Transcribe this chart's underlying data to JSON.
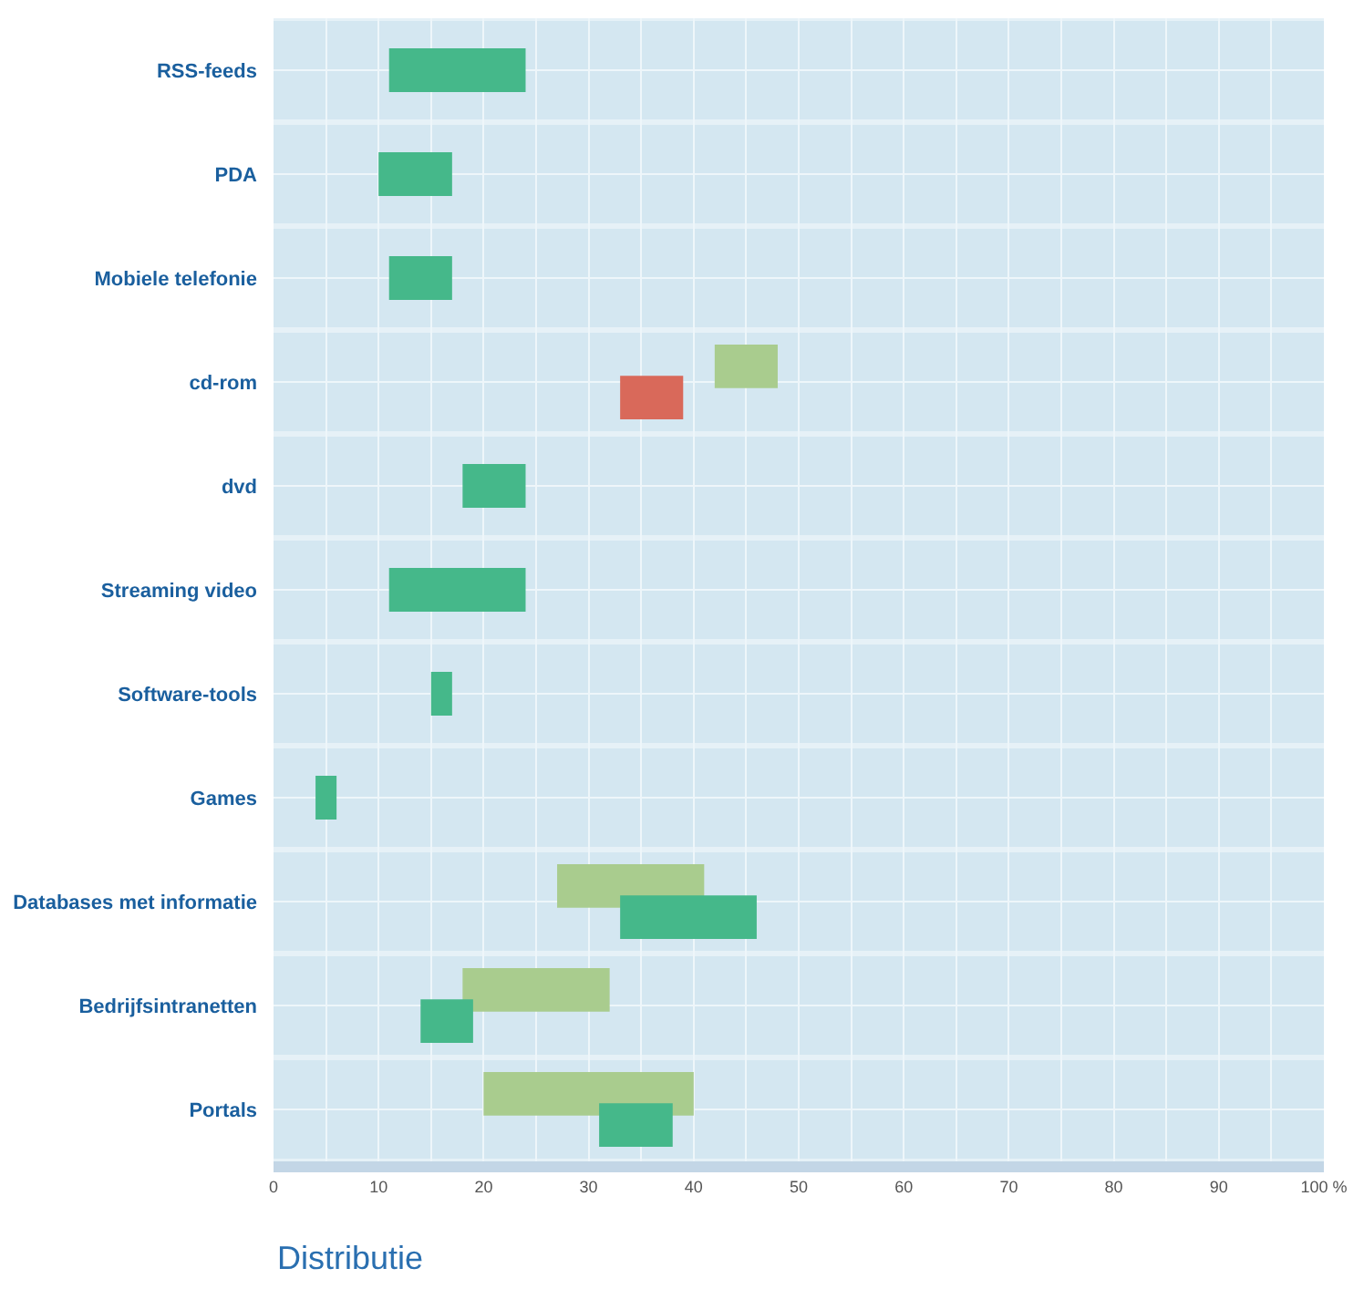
{
  "chart_data": {
    "type": "bar",
    "orientation": "horizontal",
    "xlabel": "Distributie",
    "categories": [
      "RSS-feeds",
      "PDA",
      "Mobiele telefonie",
      "cd-rom",
      "dvd",
      "Streaming video",
      "Software-tools",
      "Games",
      "Databases met informatie",
      "Bedrijfsintranetten",
      "Portals"
    ],
    "series": [
      {
        "color": "#a9cc8e",
        "base": [
          null,
          null,
          null,
          42,
          null,
          null,
          null,
          null,
          27,
          18,
          20
        ],
        "values": [
          null,
          null,
          null,
          6,
          null,
          null,
          null,
          null,
          14,
          14,
          20
        ]
      },
      {
        "colors": [
          "#45b88a",
          "#45b88a",
          "#45b88a",
          "#d9695a",
          "#45b88a",
          "#45b88a",
          "#45b88a",
          "#45b88a",
          "#45b88a",
          "#45b88a",
          "#45b88a"
        ],
        "base": [
          11,
          10,
          11,
          39,
          18,
          11,
          15,
          4,
          33,
          14,
          31
        ],
        "values": [
          13,
          7,
          6,
          -6,
          6,
          13,
          2,
          2,
          13,
          5,
          7
        ]
      }
    ],
    "xlim": [
      0,
      100
    ],
    "xticks": [
      0,
      {
        "value": 5,
        "label": null
      },
      10,
      {
        "value": 15,
        "label": null
      },
      20,
      {
        "value": 25,
        "label": null
      },
      30,
      {
        "value": 35,
        "label": null
      },
      40,
      {
        "value": 45,
        "label": null
      },
      50,
      {
        "value": 55,
        "label": null
      },
      60,
      {
        "value": 65,
        "label": null
      },
      70,
      {
        "value": 75,
        "label": null
      },
      80,
      {
        "value": 85,
        "label": null
      },
      90,
      {
        "value": 95,
        "label": null
      },
      {
        "value": 100,
        "label": "100 %"
      }
    ],
    "grid": true
  }
}
